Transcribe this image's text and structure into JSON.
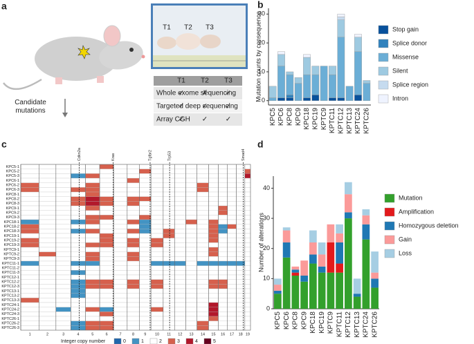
{
  "panel_a": {
    "letter": "a",
    "photo_labels": [
      "T1",
      "T2",
      "T3"
    ],
    "side_label": "Candidate mutations",
    "table": {
      "header": [
        "T1",
        "T2",
        "T3"
      ],
      "rows": [
        [
          "Whole exome sequencing",
          "✓",
          "✗",
          "✓"
        ],
        [
          "Targeted deep sequencing",
          "✓",
          "✓",
          "✓"
        ],
        [
          "Array CGH",
          "✓",
          "✓",
          "✓"
        ]
      ]
    }
  },
  "chart_data": [
    {
      "type": "bar",
      "stacked": true,
      "panel_label": "b",
      "y_label": "Mutation counts by consequence",
      "categories": [
        "KPC5",
        "KPC6",
        "KPC8",
        "KPC9",
        "KPC18",
        "KPC19",
        "KPTC9",
        "KPTC11",
        "KPTC12",
        "KPTC13",
        "KPTC24",
        "KPTC26"
      ],
      "ylim": [
        -1.5,
        32
      ],
      "yticks": [
        0,
        10,
        20,
        30
      ],
      "series": [
        {
          "name": "Stop gain",
          "color": "#08519c",
          "values": [
            0,
            1,
            1,
            0,
            1,
            2,
            0,
            1,
            1,
            0,
            2,
            0
          ]
        },
        {
          "name": "Splice donor",
          "color": "#3182bd",
          "values": [
            0,
            0,
            1,
            0,
            0,
            0,
            0,
            0,
            0,
            0,
            0,
            0
          ]
        },
        {
          "name": "Missense",
          "color": "#6baed6",
          "values": [
            1,
            11,
            7,
            6,
            8,
            7,
            12,
            8,
            21,
            5,
            15,
            6
          ]
        },
        {
          "name": "Silent",
          "color": "#9ecae1",
          "values": [
            4,
            4,
            1,
            2,
            6,
            3,
            0,
            3,
            6,
            0,
            5,
            1
          ]
        },
        {
          "name": "Splice region",
          "color": "#c6dbef",
          "values": [
            0,
            0,
            0,
            0,
            0,
            0,
            0,
            0,
            1,
            0,
            0,
            0
          ]
        },
        {
          "name": "Intron",
          "color": "#eff3ff",
          "values": [
            0,
            1,
            0,
            0,
            1,
            0,
            0,
            0,
            1,
            0,
            1,
            0
          ]
        }
      ]
    },
    {
      "type": "heatmap",
      "panel_label": "c",
      "legend_title": "Integer copy number",
      "states": [
        0,
        1,
        2,
        3,
        4,
        5
      ],
      "state_colors": [
        "#2166ac",
        "#4393c3",
        "#ffffff",
        "#d6604d",
        "#b2182b",
        "#67001f"
      ],
      "markers": [
        "Cdkn2a",
        "Kras",
        "Tgfbr2",
        "Trp53",
        "Smad4"
      ],
      "columns": [
        "1",
        "2",
        "3",
        "4",
        "5",
        "6",
        "7",
        "8",
        "9",
        "10",
        "11",
        "12",
        "13",
        "14",
        "15",
        "16",
        "17",
        "18",
        "19"
      ],
      "rows": [
        "KPC5-1",
        "KPC5-2",
        "KPC5-3",
        "KPC6-1",
        "KPC6-2",
        "KPC6-3",
        "KPC8-1",
        "KPC8-2",
        "KPC8-3",
        "KPC9-1",
        "KPC9-2",
        "KPC9-3",
        "KPC18-1",
        "KPC18-2",
        "KPC18-3",
        "KPC19-1",
        "KPC19-2",
        "KPC19-3",
        "KPTC9-1",
        "KPTC9-2",
        "KPTC9-3",
        "KPTC11-1",
        "KPTC11-2",
        "KPTC11-3",
        "KPTC12-1",
        "KPTC12-2",
        "KPTC12-3",
        "KPTC13-1",
        "KPTC13-2",
        "KPTC13-3",
        "KPTC24-1",
        "KPTC24-2",
        "KPTC24-3",
        "KPTC26-1",
        "KPTC26-2",
        "KPTC26-3"
      ],
      "matrix": [
        [
          2,
          2,
          2,
          2,
          2,
          3,
          2,
          2,
          2,
          2,
          2,
          2,
          2,
          2,
          2,
          2,
          2,
          2,
          2
        ],
        [
          2,
          2,
          2,
          2,
          2,
          2,
          2,
          2,
          3,
          2,
          2,
          2,
          2,
          2,
          2,
          2,
          2,
          2,
          3
        ],
        [
          2,
          2,
          2,
          1,
          3,
          2,
          2,
          2,
          2,
          2,
          2,
          2,
          2,
          2,
          2,
          2,
          2,
          2,
          4
        ],
        [
          2,
          2,
          2,
          2,
          2,
          2,
          2,
          3,
          2,
          2,
          2,
          2,
          2,
          2,
          2,
          2,
          2,
          2,
          2
        ],
        [
          3,
          2,
          2,
          2,
          3,
          2,
          2,
          2,
          2,
          2,
          2,
          2,
          2,
          3,
          2,
          2,
          2,
          2,
          2
        ],
        [
          3,
          2,
          2,
          3,
          3,
          2,
          2,
          2,
          2,
          2,
          2,
          2,
          2,
          3,
          2,
          2,
          2,
          2,
          2
        ],
        [
          2,
          2,
          2,
          2,
          3,
          2,
          2,
          2,
          2,
          2,
          2,
          2,
          2,
          2,
          2,
          2,
          2,
          2,
          2
        ],
        [
          2,
          2,
          2,
          3,
          4,
          3,
          2,
          3,
          3,
          2,
          2,
          2,
          2,
          2,
          2,
          2,
          2,
          2,
          2
        ],
        [
          2,
          2,
          2,
          3,
          4,
          3,
          2,
          3,
          2,
          2,
          2,
          2,
          2,
          2,
          2,
          2,
          2,
          2,
          2
        ],
        [
          2,
          2,
          2,
          2,
          3,
          2,
          2,
          2,
          2,
          2,
          2,
          2,
          2,
          2,
          2,
          3,
          2,
          2,
          2
        ],
        [
          2,
          2,
          2,
          2,
          2,
          2,
          2,
          2,
          2,
          2,
          2,
          2,
          2,
          2,
          2,
          3,
          2,
          2,
          2
        ],
        [
          2,
          2,
          2,
          2,
          3,
          3,
          2,
          2,
          3,
          2,
          2,
          2,
          2,
          2,
          2,
          2,
          2,
          2,
          2
        ],
        [
          1,
          2,
          2,
          1,
          3,
          2,
          2,
          3,
          1,
          2,
          2,
          2,
          3,
          2,
          3,
          2,
          2,
          2,
          2
        ],
        [
          3,
          2,
          2,
          2,
          2,
          2,
          2,
          2,
          1,
          2,
          2,
          2,
          2,
          2,
          3,
          1,
          3,
          2,
          2
        ],
        [
          3,
          2,
          2,
          1,
          3,
          2,
          2,
          3,
          1,
          2,
          3,
          2,
          2,
          2,
          3,
          1,
          2,
          2,
          2
        ],
        [
          2,
          2,
          2,
          2,
          2,
          3,
          2,
          2,
          2,
          2,
          3,
          2,
          2,
          2,
          3,
          2,
          2,
          2,
          2
        ],
        [
          3,
          2,
          2,
          2,
          2,
          3,
          2,
          3,
          2,
          3,
          2,
          2,
          2,
          2,
          3,
          2,
          2,
          2,
          2
        ],
        [
          3,
          2,
          2,
          2,
          3,
          3,
          2,
          3,
          2,
          3,
          2,
          2,
          2,
          2,
          2,
          2,
          2,
          2,
          2
        ],
        [
          2,
          2,
          2,
          2,
          2,
          2,
          2,
          2,
          2,
          2,
          2,
          2,
          2,
          2,
          3,
          2,
          2,
          2,
          2
        ],
        [
          2,
          3,
          2,
          2,
          3,
          2,
          2,
          3,
          2,
          2,
          2,
          2,
          2,
          2,
          3,
          2,
          2,
          2,
          2
        ],
        [
          2,
          2,
          2,
          2,
          3,
          2,
          2,
          3,
          2,
          2,
          2,
          2,
          2,
          2,
          2,
          2,
          2,
          2,
          2
        ],
        [
          1,
          2,
          2,
          1,
          1,
          2,
          2,
          2,
          2,
          1,
          1,
          1,
          2,
          1,
          1,
          1,
          1,
          1,
          2
        ],
        [
          2,
          2,
          2,
          2,
          2,
          2,
          2,
          2,
          2,
          2,
          2,
          2,
          2,
          2,
          2,
          2,
          2,
          2,
          2
        ],
        [
          2,
          2,
          2,
          1,
          2,
          2,
          2,
          2,
          2,
          2,
          2,
          2,
          2,
          2,
          2,
          2,
          2,
          2,
          2
        ],
        [
          2,
          2,
          2,
          2,
          2,
          2,
          2,
          2,
          2,
          2,
          2,
          2,
          2,
          2,
          2,
          2,
          2,
          2,
          2
        ],
        [
          2,
          2,
          2,
          1,
          3,
          3,
          2,
          3,
          2,
          3,
          2,
          2,
          2,
          2,
          3,
          3,
          2,
          2,
          2
        ],
        [
          2,
          2,
          2,
          1,
          3,
          3,
          2,
          3,
          2,
          3,
          2,
          2,
          2,
          2,
          3,
          3,
          2,
          2,
          2
        ],
        [
          2,
          2,
          2,
          1,
          2,
          2,
          2,
          2,
          2,
          2,
          2,
          2,
          2,
          2,
          2,
          2,
          2,
          2,
          2
        ],
        [
          2,
          2,
          2,
          1,
          2,
          2,
          2,
          2,
          2,
          2,
          2,
          2,
          2,
          2,
          2,
          2,
          2,
          2,
          2
        ],
        [
          3,
          2,
          2,
          2,
          2,
          2,
          2,
          2,
          2,
          2,
          2,
          2,
          2,
          2,
          2,
          2,
          2,
          2,
          2
        ],
        [
          2,
          2,
          2,
          2,
          2,
          2,
          2,
          2,
          2,
          2,
          2,
          2,
          2,
          2,
          4,
          2,
          2,
          2,
          2
        ],
        [
          2,
          2,
          1,
          2,
          3,
          1,
          2,
          2,
          2,
          3,
          2,
          2,
          2,
          2,
          4,
          2,
          2,
          2,
          2
        ],
        [
          2,
          2,
          2,
          2,
          2,
          3,
          2,
          2,
          2,
          2,
          2,
          2,
          2,
          2,
          4,
          2,
          2,
          2,
          2
        ],
        [
          2,
          2,
          2,
          2,
          2,
          2,
          2,
          2,
          2,
          2,
          2,
          2,
          2,
          2,
          3,
          2,
          2,
          2,
          2
        ],
        [
          2,
          2,
          2,
          1,
          3,
          3,
          2,
          2,
          2,
          2,
          2,
          2,
          2,
          3,
          2,
          2,
          2,
          2,
          2
        ],
        [
          2,
          2,
          2,
          1,
          3,
          3,
          2,
          2,
          2,
          2,
          2,
          2,
          2,
          3,
          2,
          2,
          2,
          2,
          2
        ]
      ]
    },
    {
      "type": "bar",
      "stacked": true,
      "panel_label": "d",
      "y_label": "Number of alterations",
      "categories": [
        "KPC5",
        "KPC6",
        "KPC8",
        "KPC9",
        "KPC18",
        "KPC19",
        "KPTC9",
        "KPTC11",
        "KPTC12",
        "KPTC13",
        "KPTC24",
        "KPTC26"
      ],
      "ylim": [
        0,
        44
      ],
      "yticks": [
        0,
        10,
        20,
        30,
        40
      ],
      "series": [
        {
          "name": "Mutation",
          "color": "#33a02c",
          "values": [
            5,
            17,
            11,
            9,
            15,
            12,
            12,
            12,
            30,
            4,
            23,
            7
          ]
        },
        {
          "name": "Amplification",
          "color": "#e31a1c",
          "values": [
            0,
            0,
            1,
            0,
            0,
            0,
            10,
            3,
            0,
            0,
            0,
            0
          ]
        },
        {
          "name": "Homozygous deletion",
          "color": "#1f78b4",
          "values": [
            1,
            5,
            1,
            2,
            3,
            2,
            0,
            7,
            2,
            1,
            5,
            3
          ]
        },
        {
          "name": "Gain",
          "color": "#fb9a99",
          "values": [
            2,
            4,
            1,
            5,
            4,
            4,
            6,
            3,
            6,
            0,
            3,
            2
          ]
        },
        {
          "name": "Loss",
          "color": "#a6cee3",
          "values": [
            2,
            1,
            0,
            0,
            4,
            4,
            0,
            3,
            4,
            5,
            2,
            7
          ]
        }
      ]
    }
  ]
}
